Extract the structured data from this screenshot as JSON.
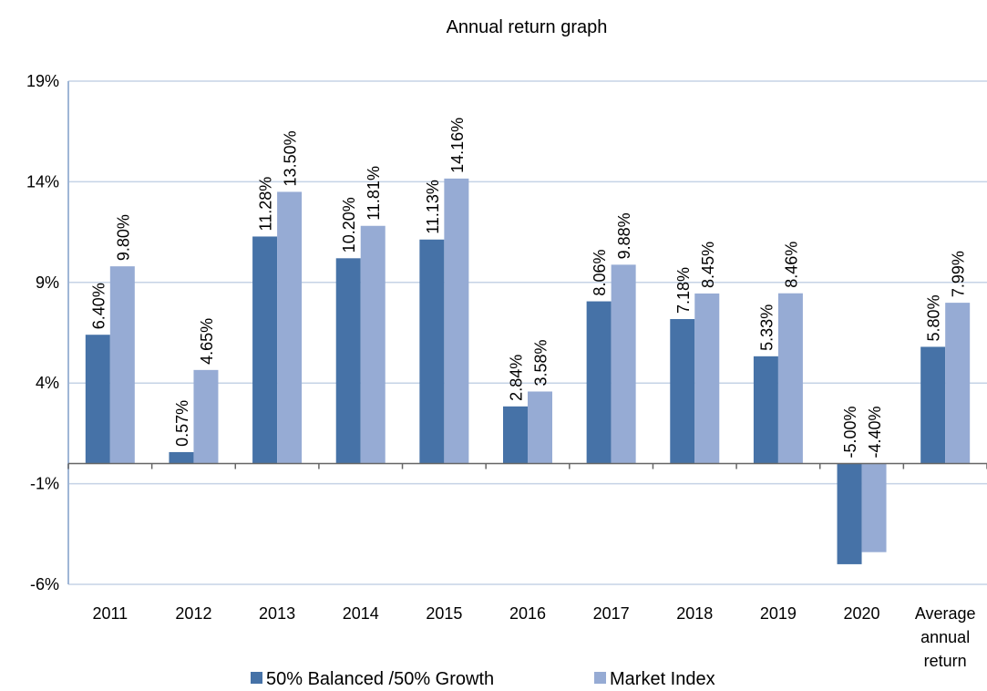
{
  "chart_data": {
    "type": "bar",
    "title": "Annual return graph",
    "categories": [
      "2011",
      "2012",
      "2013",
      "2014",
      "2015",
      "2016",
      "2017",
      "2018",
      "2019",
      "2020",
      "Average annual return"
    ],
    "series": [
      {
        "name": "50% Balanced /50% Growth",
        "color": "#4672a7",
        "values": [
          6.4,
          0.57,
          11.28,
          10.2,
          11.13,
          2.84,
          8.06,
          7.18,
          5.33,
          -5.0,
          5.8
        ],
        "value_labels": [
          "6.40%",
          "0.57%",
          "11.28%",
          "10.20%",
          "11.13%",
          "2.84%",
          "8.06%",
          "7.18%",
          "5.33%",
          "-5.00%",
          "5.80%"
        ]
      },
      {
        "name": "Market Index",
        "color": "#96abd4",
        "values": [
          9.8,
          4.65,
          13.5,
          11.81,
          14.16,
          3.58,
          9.88,
          8.45,
          8.46,
          -4.4,
          7.99
        ],
        "value_labels": [
          "9.80%",
          "4.65%",
          "13.50%",
          "11.81%",
          "14.16%",
          "3.58%",
          "9.88%",
          "8.45%",
          "8.46%",
          "-4.40%",
          "7.99%"
        ]
      }
    ],
    "ylim": [
      -6,
      19
    ],
    "yticks": [
      {
        "value": -6,
        "label": "-6%"
      },
      {
        "value": -1,
        "label": "-1%"
      },
      {
        "value": 4,
        "label": "4%"
      },
      {
        "value": 9,
        "label": "9%"
      },
      {
        "value": 14,
        "label": "14%"
      },
      {
        "value": 19,
        "label": "19%"
      }
    ],
    "grid": true,
    "legend": "bottom"
  }
}
